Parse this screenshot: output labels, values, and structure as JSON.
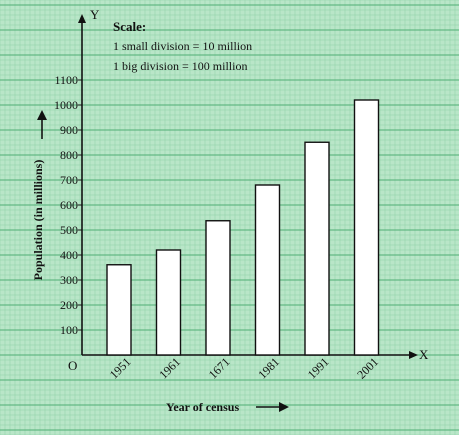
{
  "colors": {
    "paper": "#b9e6c8",
    "grid_minor": "#8fd1a6",
    "grid_major": "#4fae74",
    "axis": "#111111",
    "bar_fill": "#ffffff",
    "bar_stroke": "#111111"
  },
  "scale_note": {
    "title": "Scale:",
    "line1": "1 small division = 10 million",
    "line2": "1 big division = 100 million"
  },
  "chart_data": {
    "type": "bar",
    "categories": [
      "1951",
      "1961",
      "1671",
      "1981",
      "1991",
      "2001"
    ],
    "values": [
      361,
      420,
      537,
      680,
      851,
      1020
    ],
    "xlabel": "Year of census",
    "ylabel": "Population (in millions)",
    "ylim": [
      0,
      1100
    ],
    "yticks": [
      100,
      200,
      300,
      400,
      500,
      600,
      700,
      800,
      900,
      1000,
      1100
    ],
    "x_axis_letter": "X",
    "y_axis_letter": "Y",
    "origin_label": "O",
    "grid": true
  }
}
